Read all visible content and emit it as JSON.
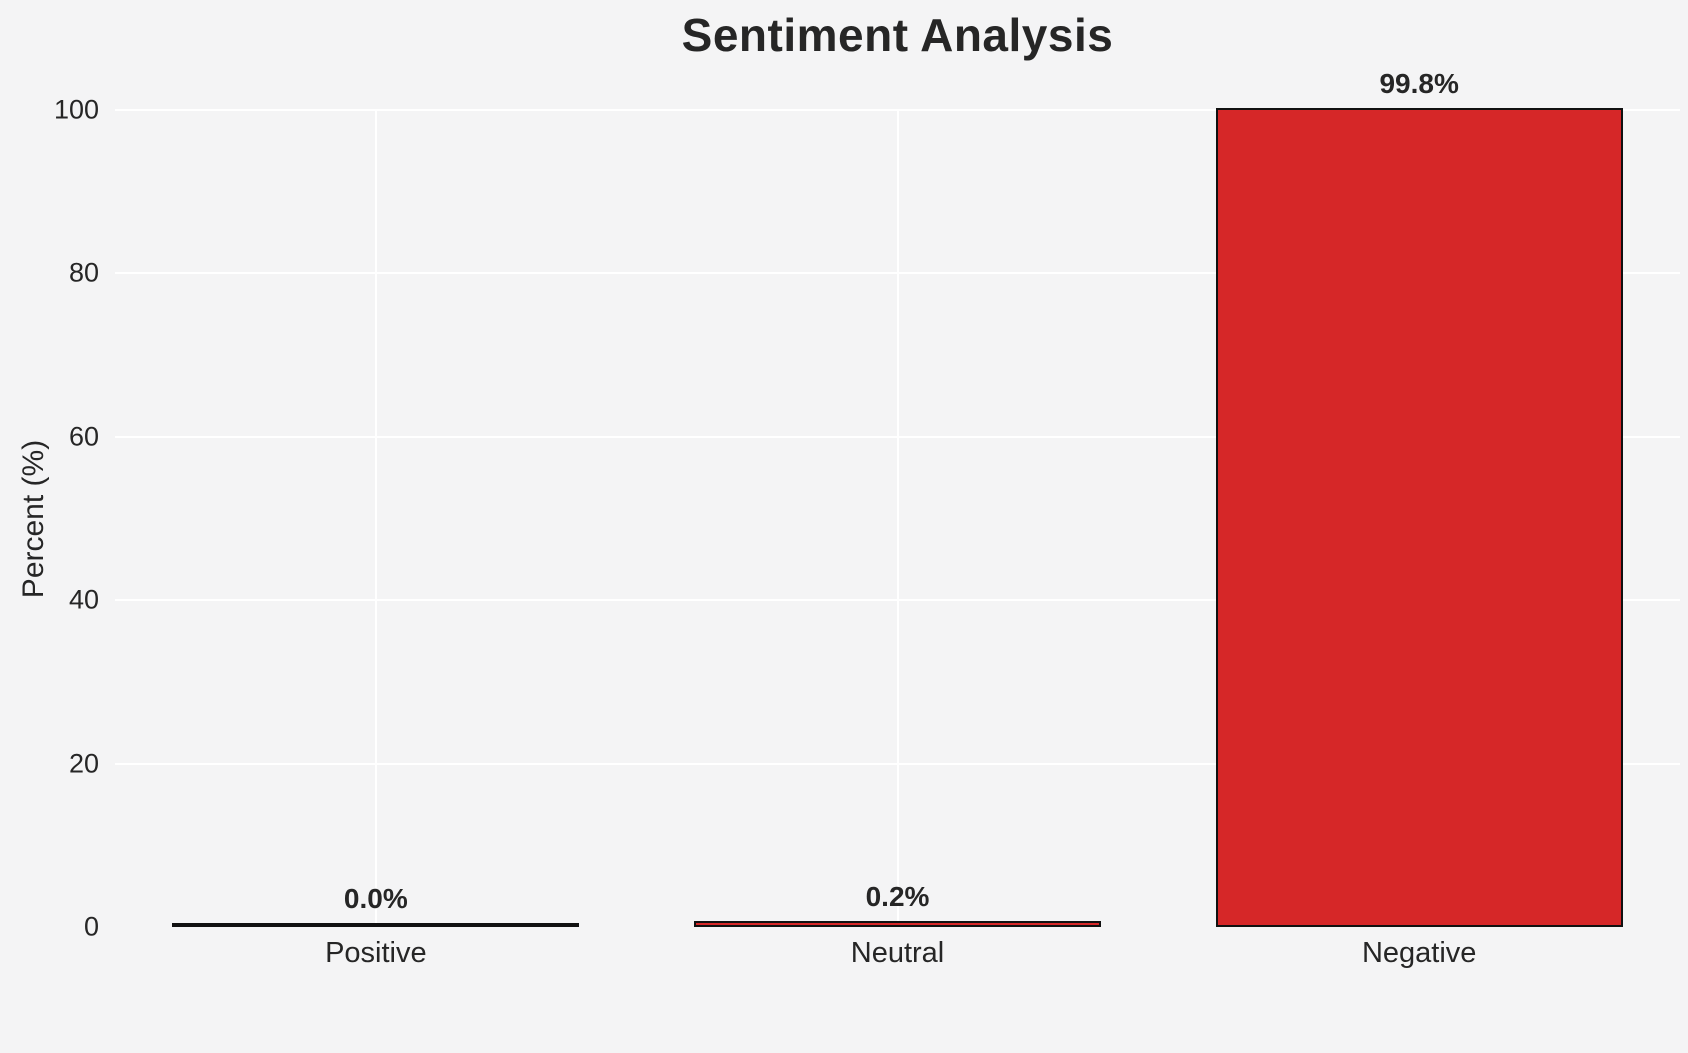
{
  "chart_data": {
    "type": "bar",
    "title": "Sentiment Analysis",
    "xlabel": "",
    "ylabel": "Percent (%)",
    "categories": [
      "Positive",
      "Neutral",
      "Negative"
    ],
    "values": [
      0.0,
      0.2,
      99.8
    ],
    "value_labels": [
      "0.0%",
      "0.2%",
      "99.8%"
    ],
    "ylim": [
      0,
      100
    ],
    "yticks": [
      "0",
      "20",
      "40",
      "60",
      "80",
      "100"
    ],
    "grid": "horizontal-and-vertical-white",
    "legend": "none",
    "bar_color": "#d62728",
    "bar_edge_color": "#111111",
    "background_color": "#f4f4f5"
  }
}
